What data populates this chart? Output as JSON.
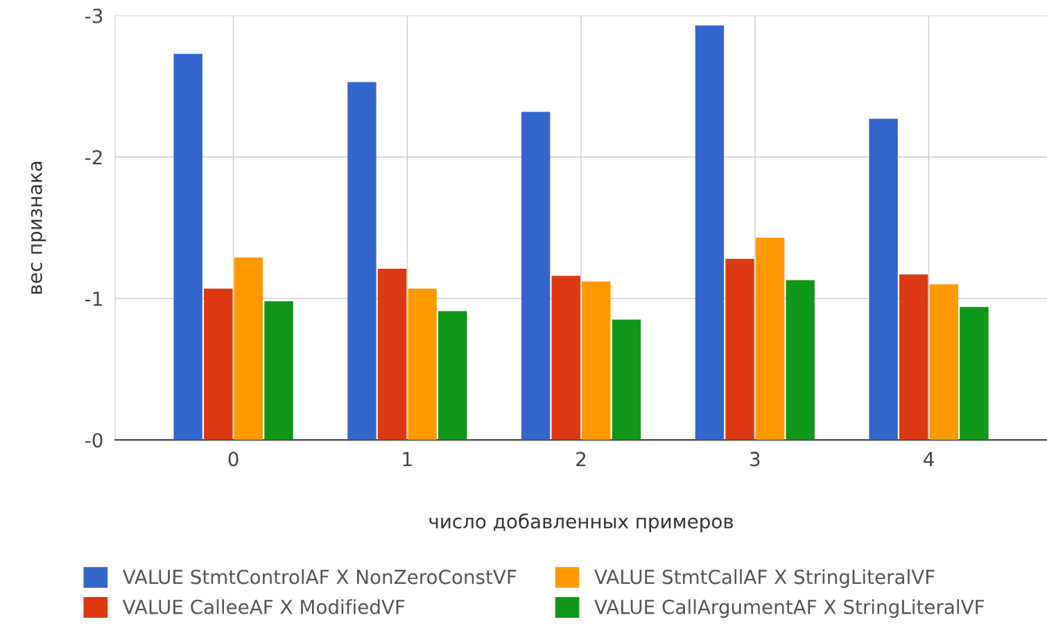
{
  "chart_data": {
    "type": "bar",
    "xlabel": "число добавленных примеров",
    "ylabel": "вес признака",
    "categories": [
      "0",
      "1",
      "2",
      "3",
      "4"
    ],
    "series": [
      {
        "name": "VALUE StmtControlAF X NonZeroConstVF",
        "color": "#3366cc",
        "values": [
          -2.73,
          -2.53,
          -2.32,
          -2.93,
          -2.27
        ]
      },
      {
        "name": "VALUE CalleeAF X ModifiedVF",
        "color": "#dc3912",
        "values": [
          -1.07,
          -1.21,
          -1.16,
          -1.28,
          -1.17
        ]
      },
      {
        "name": "VALUE StmtCallAF X StringLiteralVF",
        "color": "#ff9900",
        "values": [
          -1.29,
          -1.07,
          -1.12,
          -1.43,
          -1.1
        ]
      },
      {
        "name": "VALUE CallArgumentAF X StringLiteralVF",
        "color": "#109618",
        "values": [
          -0.98,
          -0.91,
          -0.85,
          -1.13,
          -0.94
        ]
      }
    ],
    "ylim": [
      0,
      -3
    ],
    "yticks": [
      -3,
      -2,
      -1,
      {
        "value": 0,
        "label": "-0"
      }
    ],
    "grid": true,
    "legend": "bottom"
  }
}
